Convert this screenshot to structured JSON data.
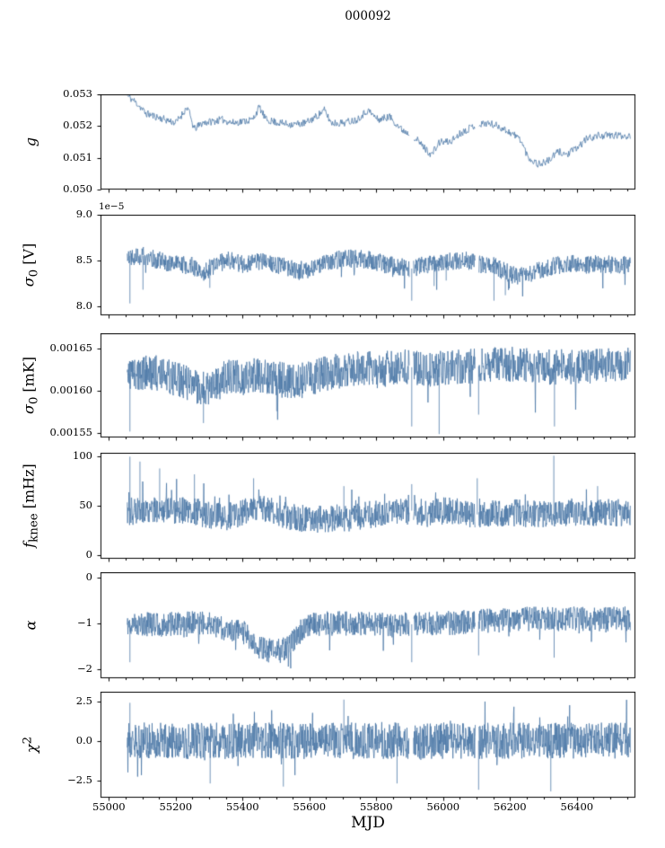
{
  "title": "000092",
  "xlabel": "MJD",
  "line_color": "#4d79a7",
  "axis_color": "#000000",
  "chart_data": {
    "type": "line",
    "x_lim": [
      54975,
      56575
    ],
    "x_range_data": [
      55055,
      56560
    ],
    "x_ticks": [
      "55000",
      "55200",
      "55400",
      "55600",
      "55800",
      "56000",
      "56200",
      "56400"
    ],
    "x_minor_step": 50,
    "gaps": [
      [
        55899,
        55911
      ],
      [
        56096,
        56107
      ]
    ],
    "panels": [
      {
        "name": "g",
        "ylabel_html": "<i>g</i>",
        "ylim": [
          0.05,
          0.053
        ],
        "yticks": [
          {
            "label": "0.050",
            "v": 0.05
          },
          {
            "label": "0.051",
            "v": 0.051
          },
          {
            "label": "0.052",
            "v": 0.052
          },
          {
            "label": "0.053",
            "v": 0.053
          }
        ],
        "trend": [
          [
            55055,
            0.05295
          ],
          [
            55075,
            0.0528
          ],
          [
            55090,
            0.05265
          ],
          [
            55110,
            0.0524
          ],
          [
            55140,
            0.0523
          ],
          [
            55170,
            0.0522
          ],
          [
            55200,
            0.0521
          ],
          [
            55235,
            0.0526
          ],
          [
            55255,
            0.0519
          ],
          [
            55280,
            0.0521
          ],
          [
            55310,
            0.05215
          ],
          [
            55340,
            0.0522
          ],
          [
            55370,
            0.0521
          ],
          [
            55400,
            0.05215
          ],
          [
            55430,
            0.0522
          ],
          [
            55450,
            0.0526
          ],
          [
            55470,
            0.0522
          ],
          [
            55510,
            0.0521
          ],
          [
            55550,
            0.05205
          ],
          [
            55590,
            0.0521
          ],
          [
            55620,
            0.0523
          ],
          [
            55645,
            0.0525
          ],
          [
            55665,
            0.0521
          ],
          [
            55700,
            0.0521
          ],
          [
            55740,
            0.0522
          ],
          [
            55775,
            0.0525
          ],
          [
            55805,
            0.0522
          ],
          [
            55840,
            0.0523
          ],
          [
            55875,
            0.0519
          ],
          [
            55910,
            0.0517
          ],
          [
            55945,
            0.0513
          ],
          [
            55965,
            0.0511
          ],
          [
            55990,
            0.0515
          ],
          [
            56020,
            0.0515
          ],
          [
            56055,
            0.0518
          ],
          [
            56090,
            0.052
          ],
          [
            56130,
            0.0521
          ],
          [
            56165,
            0.052
          ],
          [
            56200,
            0.0518
          ],
          [
            56230,
            0.0516
          ],
          [
            56255,
            0.051
          ],
          [
            56285,
            0.0508
          ],
          [
            56315,
            0.0509
          ],
          [
            56345,
            0.0512
          ],
          [
            56370,
            0.0511
          ],
          [
            56400,
            0.0513
          ],
          [
            56430,
            0.0516
          ],
          [
            56465,
            0.0517
          ],
          [
            56560,
            0.0517
          ]
        ],
        "noise": 0.00012,
        "n": 800,
        "seed": 11
      },
      {
        "name": "sigma0_V",
        "ylabel_html": "<i>&#963;</i><sub>0</sub> [V]",
        "offset_label": "1e&#8722;5",
        "ylim": [
          7.9,
          9.0
        ],
        "yticks": [
          {
            "label": "8.0",
            "v": 8.0
          },
          {
            "label": "8.5",
            "v": 8.5
          },
          {
            "label": "9.0",
            "v": 9.0
          }
        ],
        "trend": [
          [
            55055,
            8.55
          ],
          [
            55100,
            8.55
          ],
          [
            55150,
            8.5
          ],
          [
            55200,
            8.46
          ],
          [
            55250,
            8.44
          ],
          [
            55285,
            8.37
          ],
          [
            55320,
            8.46
          ],
          [
            55360,
            8.5
          ],
          [
            55400,
            8.46
          ],
          [
            55450,
            8.49
          ],
          [
            55500,
            8.46
          ],
          [
            55545,
            8.41
          ],
          [
            55585,
            8.39
          ],
          [
            55625,
            8.43
          ],
          [
            55665,
            8.49
          ],
          [
            55705,
            8.52
          ],
          [
            55745,
            8.52
          ],
          [
            55785,
            8.5
          ],
          [
            55825,
            8.46
          ],
          [
            55865,
            8.43
          ],
          [
            55905,
            8.41
          ],
          [
            55945,
            8.45
          ],
          [
            55985,
            8.46
          ],
          [
            56025,
            8.49
          ],
          [
            56065,
            8.5
          ],
          [
            56105,
            8.46
          ],
          [
            56145,
            8.45
          ],
          [
            56185,
            8.38
          ],
          [
            56225,
            8.32
          ],
          [
            56265,
            8.36
          ],
          [
            56305,
            8.41
          ],
          [
            56345,
            8.45
          ],
          [
            56385,
            8.46
          ],
          [
            56425,
            8.45
          ],
          [
            56465,
            8.46
          ],
          [
            56560,
            8.45
          ]
        ],
        "noise": 0.1,
        "n": 1500,
        "seed": 22,
        "tail": {
          "p": 0.012,
          "mult": 2.6,
          "dir": -1
        },
        "spikes": [
          [
            55063,
            8.03
          ],
          [
            55102,
            8.18
          ],
          [
            55302,
            8.2
          ],
          [
            55906,
            8.06
          ],
          [
            55973,
            8.22
          ],
          [
            56009,
            8.28
          ],
          [
            56152,
            8.06
          ],
          [
            56186,
            8.12
          ]
        ]
      },
      {
        "name": "sigma0_mK",
        "ylabel_html": "<i>&#963;</i><sub>0</sub> [mK]",
        "ylim": [
          0.001545,
          0.001668
        ],
        "yticks": [
          {
            "label": "0.00155",
            "v": 0.00155
          },
          {
            "label": "0.00160",
            "v": 0.0016
          },
          {
            "label": "0.00165",
            "v": 0.00165
          }
        ],
        "trend": [
          [
            55055,
            0.00162
          ],
          [
            55150,
            0.001621
          ],
          [
            55220,
            0.001612
          ],
          [
            55270,
            0.001604
          ],
          [
            55310,
            0.001602
          ],
          [
            55355,
            0.001618
          ],
          [
            55400,
            0.001614
          ],
          [
            55450,
            0.00162
          ],
          [
            55505,
            0.001614
          ],
          [
            55555,
            0.00161
          ],
          [
            55605,
            0.001615
          ],
          [
            55655,
            0.001621
          ],
          [
            55705,
            0.001625
          ],
          [
            55755,
            0.001628
          ],
          [
            55805,
            0.001624
          ],
          [
            55855,
            0.001628
          ],
          [
            55905,
            0.001628
          ],
          [
            55955,
            0.001624
          ],
          [
            56005,
            0.001628
          ],
          [
            56105,
            0.001629
          ],
          [
            56205,
            0.001632
          ],
          [
            56305,
            0.001628
          ],
          [
            56405,
            0.001629
          ],
          [
            56560,
            0.00163
          ]
        ],
        "noise": 2.1e-05,
        "n": 1500,
        "seed": 33,
        "tail": {
          "p": 0.012,
          "mult": 2.2,
          "dir": -1
        },
        "spikes": [
          [
            55063,
            0.001552
          ],
          [
            55283,
            0.001562
          ],
          [
            55502,
            0.001576
          ],
          [
            55906,
            0.001558
          ],
          [
            55988,
            0.001549
          ],
          [
            56106,
            0.001572
          ],
          [
            56333,
            0.001558
          ]
        ]
      },
      {
        "name": "f_knee",
        "ylabel_html": "<i>f</i><sub>knee</sub> [mHz]",
        "ylim": [
          -4,
          104
        ],
        "yticks": [
          {
            "label": "0",
            "v": 0
          },
          {
            "label": "50",
            "v": 50
          },
          {
            "label": "100",
            "v": 100
          }
        ],
        "trend": [
          [
            55055,
            44
          ],
          [
            55150,
            46
          ],
          [
            55250,
            45
          ],
          [
            55305,
            40
          ],
          [
            55355,
            39
          ],
          [
            55450,
            48
          ],
          [
            55505,
            42
          ],
          [
            55555,
            38
          ],
          [
            55605,
            36
          ],
          [
            55705,
            37
          ],
          [
            55805,
            42
          ],
          [
            55905,
            45
          ],
          [
            55955,
            42
          ],
          [
            56005,
            45
          ],
          [
            56105,
            41
          ],
          [
            56205,
            43
          ],
          [
            56305,
            41
          ],
          [
            56405,
            43
          ],
          [
            56560,
            43
          ]
        ],
        "noise": 14,
        "n": 1500,
        "seed": 44,
        "tail": {
          "p": 0.035,
          "mult": 1.9,
          "dir": 1
        },
        "spikes": [
          [
            55063,
            100
          ],
          [
            55093,
            95
          ],
          [
            55152,
            88
          ],
          [
            55256,
            82
          ],
          [
            55433,
            78
          ],
          [
            55703,
            70
          ],
          [
            55906,
            72
          ],
          [
            56102,
            78
          ],
          [
            56331,
            101
          ],
          [
            56462,
            70
          ]
        ]
      },
      {
        "name": "alpha",
        "ylabel_html": "<i>&#945;</i>",
        "ylim": [
          -2.2,
          0.12
        ],
        "yticks": [
          {
            "label": "0",
            "v": 0
          },
          {
            "label": "&#8722;1",
            "v": -1
          },
          {
            "label": "&#8722;2",
            "v": -2
          }
        ],
        "trend": [
          [
            55055,
            -1.0
          ],
          [
            55155,
            -1.03
          ],
          [
            55255,
            -1.0
          ],
          [
            55305,
            -1.02
          ],
          [
            55355,
            -1.12
          ],
          [
            55405,
            -1.2
          ],
          [
            55445,
            -1.5
          ],
          [
            55475,
            -1.6
          ],
          [
            55515,
            -1.6
          ],
          [
            55545,
            -1.45
          ],
          [
            55575,
            -1.15
          ],
          [
            55605,
            -1.02
          ],
          [
            55655,
            -1.0
          ],
          [
            55755,
            -1.0
          ],
          [
            55855,
            -1.04
          ],
          [
            55955,
            -1.0
          ],
          [
            56055,
            -0.98
          ],
          [
            56155,
            -0.94
          ],
          [
            56255,
            -0.9
          ],
          [
            56355,
            -0.9
          ],
          [
            56560,
            -0.9
          ]
        ],
        "noise": 0.27,
        "n": 1500,
        "seed": 55,
        "tail": {
          "p": 0.02,
          "mult": 1.8,
          "dir": -1
        },
        "spikes": [
          [
            55063,
            -1.85
          ],
          [
            55906,
            -1.85
          ],
          [
            56106,
            -1.7
          ],
          [
            56332,
            -1.75
          ]
        ]
      },
      {
        "name": "chi2",
        "ylabel_html": "<i>&#967;</i><sup>2</sup>",
        "ylim": [
          -3.6,
          3.1
        ],
        "yticks": [
          {
            "label": "&#8722;2.5",
            "v": -2.5
          },
          {
            "label": "0.0",
            "v": 0
          },
          {
            "label": "2.5",
            "v": 2.5
          }
        ],
        "trend": [
          [
            55055,
            0
          ],
          [
            56560,
            0
          ]
        ],
        "noise": 1.15,
        "n": 1600,
        "seed": 66,
        "tail": {
          "p": 0.03,
          "mult": 1.5,
          "dir": 0
        },
        "spikes": [
          [
            55063,
            2.4
          ],
          [
            55303,
            -2.7
          ],
          [
            55522,
            -2.9
          ],
          [
            55703,
            2.6
          ],
          [
            55862,
            -2.7
          ],
          [
            56106,
            -3.1
          ],
          [
            56322,
            -3.2
          ]
        ]
      }
    ]
  }
}
